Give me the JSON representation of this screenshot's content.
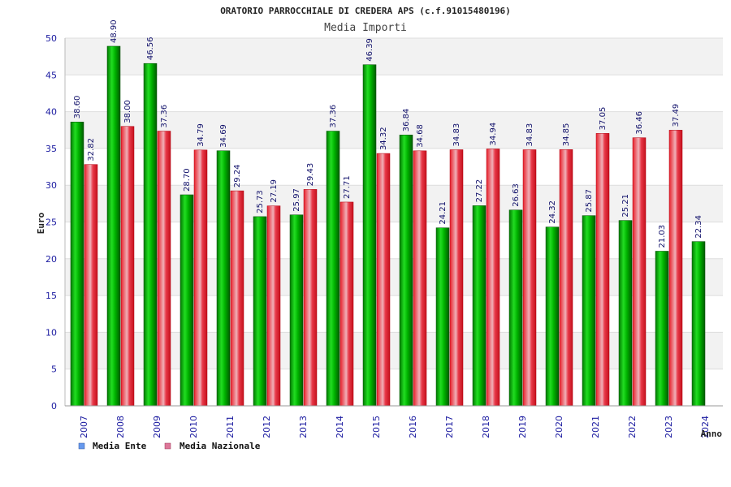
{
  "chart_data": {
    "type": "bar",
    "title": "ORATORIO PARROCCHIALE DI CREDERA APS (c.f.91015480196)",
    "subtitle": "Media Importi",
    "xlabel": "Anno",
    "ylabel": "Euro",
    "ylim": [
      0,
      50
    ],
    "yticks": [
      "0",
      "5",
      "10",
      "15",
      "20",
      "25",
      "30",
      "35",
      "40",
      "45",
      "50"
    ],
    "grid": true,
    "legend_position": "bottom-left",
    "categories": [
      "2007",
      "2008",
      "2009",
      "2010",
      "2011",
      "2012",
      "2013",
      "2014",
      "2015",
      "2016",
      "2017",
      "2018",
      "2019",
      "2020",
      "2021",
      "2022",
      "2023",
      "2024"
    ],
    "series": [
      {
        "name": "Media Ente",
        "color": "#00b000",
        "legend_color": "#6699ee",
        "values": [
          38.6,
          48.9,
          46.56,
          28.7,
          34.69,
          25.73,
          25.97,
          37.36,
          46.39,
          36.84,
          24.21,
          27.22,
          26.63,
          24.32,
          25.87,
          25.21,
          21.03,
          22.34
        ],
        "labels": [
          "38.60",
          "48.90",
          "46.56",
          "28.70",
          "34.69",
          "25.73",
          "25.97",
          "37.36",
          "46.39",
          "36.84",
          "24.21",
          "27.22",
          "26.63",
          "24.32",
          "25.87",
          "25.21",
          "21.03",
          "22.34"
        ]
      },
      {
        "name": "Media Nazionale",
        "color": "#e8202a",
        "legend_color": "#dd7799",
        "values": [
          32.82,
          38.0,
          37.36,
          34.79,
          29.24,
          27.19,
          29.43,
          27.71,
          34.32,
          34.68,
          34.83,
          34.94,
          34.83,
          34.85,
          37.05,
          36.46,
          37.49,
          null
        ],
        "labels": [
          "32.82",
          "38.00",
          "37.36",
          "34.79",
          "29.24",
          "27.19",
          "29.43",
          "27.71",
          "34.32",
          "34.68",
          "34.83",
          "34.94",
          "34.83",
          "34.85",
          "37.05",
          "36.46",
          "37.49",
          null
        ]
      }
    ]
  }
}
